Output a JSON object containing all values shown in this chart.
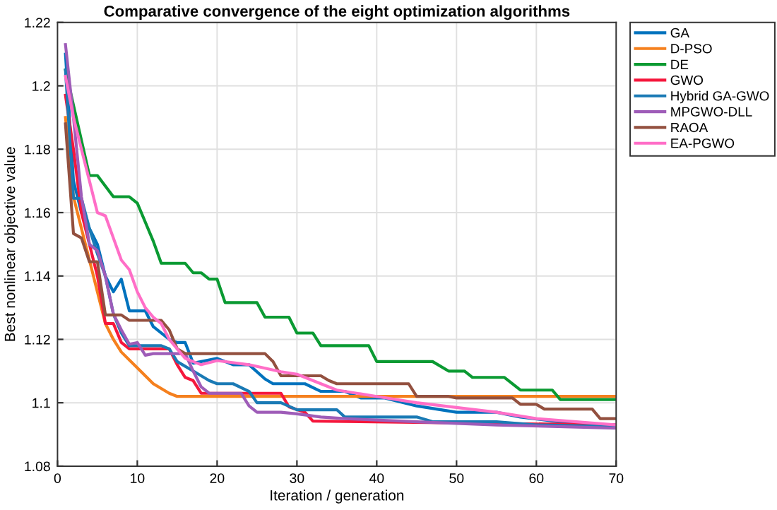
{
  "chart_data": {
    "type": "line",
    "title": "Comparative convergence of the eight optimization algorithms",
    "xlabel": "Iteration / generation",
    "ylabel": "Best nonlinear objective value",
    "xlim": [
      0,
      70
    ],
    "ylim": [
      1.08,
      1.22
    ],
    "xticks": [
      0,
      10,
      20,
      30,
      40,
      50,
      60,
      70
    ],
    "yticks": [
      1.08,
      1.1,
      1.12,
      1.14,
      1.16,
      1.18,
      1.2,
      1.22
    ],
    "grid": true,
    "legend": "top right",
    "line_style": "solid",
    "marker": "none",
    "series": [
      {
        "name": "GA",
        "color": "#0072bd",
        "x": [
          1,
          2,
          3,
          4,
          5,
          6,
          7,
          8,
          9,
          11,
          12,
          14,
          15,
          16,
          17,
          20,
          22,
          24,
          26,
          27,
          28,
          31,
          33,
          36,
          38,
          41,
          45,
          50,
          55,
          58,
          65,
          70
        ],
        "values": [
          1.21,
          1.17,
          1.16,
          1.155,
          1.15,
          1.14,
          1.135,
          1.139,
          1.129,
          1.129,
          1.124,
          1.12,
          1.119,
          1.119,
          1.1125,
          1.114,
          1.112,
          1.112,
          1.1075,
          1.106,
          1.106,
          1.106,
          1.1036,
          1.1036,
          1.1015,
          1.1015,
          1.099,
          1.097,
          1.097,
          1.0955,
          1.0933,
          1.093
        ]
      },
      {
        "name": "D-PSO",
        "color": "#f5801e",
        "x": [
          1,
          2,
          3,
          4,
          5,
          6,
          7,
          8,
          10,
          12,
          14,
          15,
          70
        ],
        "values": [
          1.19,
          1.165,
          1.155,
          1.145,
          1.135,
          1.125,
          1.12,
          1.116,
          1.111,
          1.106,
          1.103,
          1.102,
          1.102
        ]
      },
      {
        "name": "DE",
        "color": "#0a9a32",
        "x": [
          1,
          4,
          5,
          7,
          9,
          10,
          12,
          13,
          16,
          17,
          18,
          19,
          20,
          21,
          25,
          26,
          29,
          30,
          32,
          33,
          39,
          40,
          47,
          49,
          51,
          52,
          56,
          58,
          62,
          63,
          70
        ],
        "values": [
          1.205,
          1.1717,
          1.1717,
          1.165,
          1.165,
          1.163,
          1.151,
          1.144,
          1.144,
          1.141,
          1.141,
          1.139,
          1.139,
          1.1316,
          1.1316,
          1.127,
          1.127,
          1.122,
          1.122,
          1.118,
          1.118,
          1.113,
          1.113,
          1.11,
          1.11,
          1.108,
          1.108,
          1.104,
          1.104,
          1.101,
          1.101
        ]
      },
      {
        "name": "GWO",
        "color": "#f5173c",
        "x": [
          1,
          2,
          3,
          4,
          5,
          6,
          7,
          8,
          9,
          14,
          15,
          16,
          17,
          18,
          28,
          29,
          31,
          32,
          70
        ],
        "values": [
          1.197,
          1.18,
          1.16,
          1.15,
          1.14,
          1.125,
          1.125,
          1.119,
          1.117,
          1.117,
          1.112,
          1.108,
          1.107,
          1.103,
          1.103,
          1.0987,
          1.097,
          1.0942,
          1.093
        ]
      },
      {
        "name": "Hybrid GA-GWO",
        "color": "#1a7ab5",
        "x": [
          1,
          2,
          3,
          4,
          5,
          6,
          7,
          8,
          9,
          13,
          14,
          15,
          17,
          19,
          20,
          22,
          24,
          25,
          28,
          30,
          35,
          36,
          45,
          47,
          55,
          60,
          70
        ],
        "values": [
          1.205,
          1.1645,
          1.1645,
          1.155,
          1.147,
          1.14,
          1.128,
          1.122,
          1.118,
          1.118,
          1.117,
          1.113,
          1.11,
          1.107,
          1.106,
          1.106,
          1.1036,
          1.1,
          1.1,
          1.0978,
          1.0978,
          1.0955,
          1.0955,
          1.094,
          1.094,
          1.093,
          1.0925
        ]
      },
      {
        "name": "MPGWO-DLL",
        "color": "#9e5cb8",
        "x": [
          1,
          2,
          3,
          4,
          5,
          6,
          7,
          8,
          9,
          10,
          11,
          12,
          16,
          17,
          18,
          19,
          23,
          24,
          25,
          28,
          30,
          33,
          36,
          45,
          55,
          70
        ],
        "values": [
          1.213,
          1.19,
          1.165,
          1.15,
          1.148,
          1.14,
          1.128,
          1.123,
          1.1185,
          1.119,
          1.115,
          1.1155,
          1.1155,
          1.11,
          1.105,
          1.103,
          1.103,
          1.099,
          1.097,
          1.097,
          1.0965,
          1.0955,
          1.095,
          1.094,
          1.093,
          1.092
        ]
      },
      {
        "name": "RAOA",
        "color": "#93503f",
        "x": [
          1,
          2,
          3,
          4,
          5,
          6,
          8,
          9,
          13,
          14,
          15,
          16,
          26,
          27,
          28,
          33,
          34,
          35,
          40,
          44,
          45,
          49,
          50,
          57,
          58,
          60,
          61,
          67,
          68,
          70
        ],
        "values": [
          1.188,
          1.1534,
          1.152,
          1.1445,
          1.1445,
          1.1277,
          1.1277,
          1.126,
          1.126,
          1.123,
          1.117,
          1.1155,
          1.1155,
          1.113,
          1.1085,
          1.1085,
          1.107,
          1.106,
          1.106,
          1.106,
          1.102,
          1.102,
          1.1015,
          1.1015,
          1.0995,
          1.0995,
          1.098,
          1.098,
          1.095,
          1.095
        ]
      },
      {
        "name": "EA-PGWO",
        "color": "#ff6ec7",
        "x": [
          1,
          2,
          3,
          4,
          5,
          6,
          7,
          8,
          9,
          10,
          11,
          12,
          13,
          14,
          15,
          16,
          17,
          18,
          20,
          24,
          28,
          30,
          32,
          35,
          40,
          45,
          50,
          55,
          60,
          65,
          70
        ],
        "values": [
          1.203,
          1.19,
          1.18,
          1.17,
          1.16,
          1.159,
          1.152,
          1.145,
          1.142,
          1.135,
          1.13,
          1.127,
          1.125,
          1.12,
          1.117,
          1.114,
          1.113,
          1.112,
          1.1133,
          1.112,
          1.1098,
          1.109,
          1.107,
          1.104,
          1.102,
          1.1,
          1.0985,
          1.097,
          1.095,
          1.094,
          1.093
        ]
      }
    ]
  }
}
